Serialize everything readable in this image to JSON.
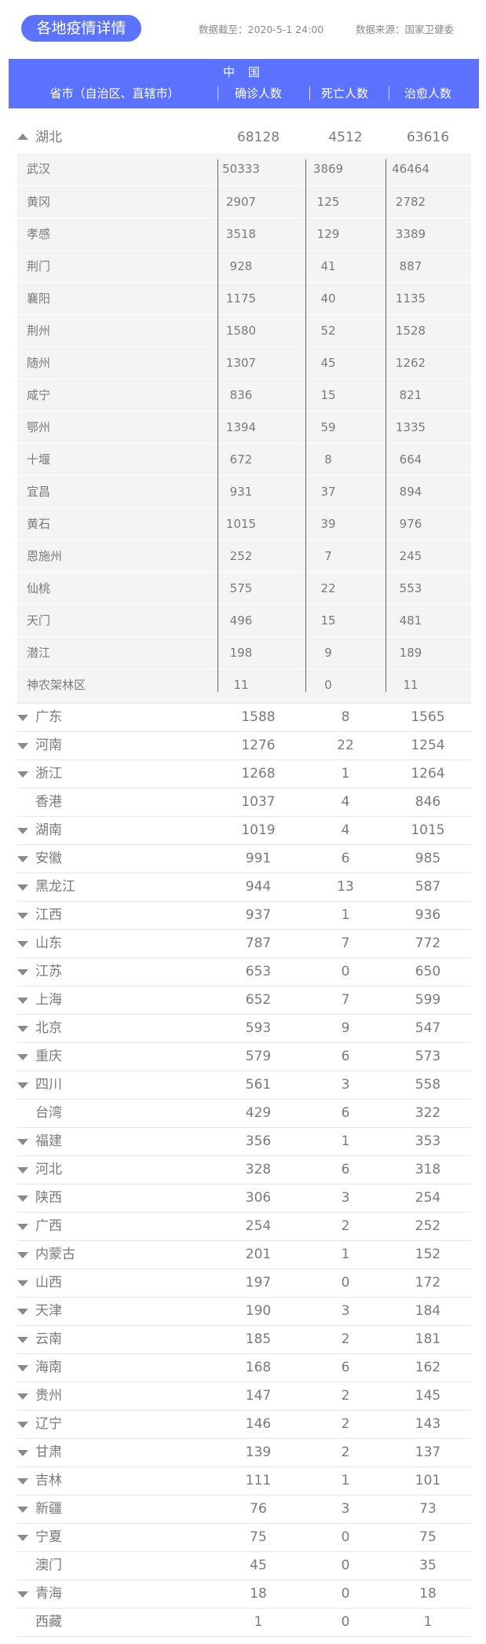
{
  "header": {
    "title": "各地疫情详情",
    "updated": "数据截至：2020-5-1 24:00",
    "source": "数据来源：国家卫健委"
  },
  "table_header": {
    "country": "中 国",
    "col_region": "省市（自治区、直辖市）",
    "col_confirmed": "确诊人数",
    "col_deaths": "死亡人数",
    "col_cured": "治愈人数"
  },
  "colors": {
    "accent": "#5b72fe",
    "sub_bg": "#f4f4f4",
    "text": "#7a7a7a"
  },
  "expanded": {
    "name": "湖北",
    "confirmed": "68128",
    "deaths": "4512",
    "cured": "63616",
    "icon": "triangle-up-icon",
    "cities": [
      {
        "name": "武汉",
        "confirmed": "50333",
        "deaths": "3869",
        "cured": "46464"
      },
      {
        "name": "黄冈",
        "confirmed": "2907",
        "deaths": "125",
        "cured": "2782"
      },
      {
        "name": "孝感",
        "confirmed": "3518",
        "deaths": "129",
        "cured": "3389"
      },
      {
        "name": "荆门",
        "confirmed": "928",
        "deaths": "41",
        "cured": "887"
      },
      {
        "name": "襄阳",
        "confirmed": "1175",
        "deaths": "40",
        "cured": "1135"
      },
      {
        "name": "荆州",
        "confirmed": "1580",
        "deaths": "52",
        "cured": "1528"
      },
      {
        "name": "随州",
        "confirmed": "1307",
        "deaths": "45",
        "cured": "1262"
      },
      {
        "name": "咸宁",
        "confirmed": "836",
        "deaths": "15",
        "cured": "821"
      },
      {
        "name": "鄂州",
        "confirmed": "1394",
        "deaths": "59",
        "cured": "1335"
      },
      {
        "name": "十堰",
        "confirmed": "672",
        "deaths": "8",
        "cured": "664"
      },
      {
        "name": "宜昌",
        "confirmed": "931",
        "deaths": "37",
        "cured": "894"
      },
      {
        "name": "黄石",
        "confirmed": "1015",
        "deaths": "39",
        "cured": "976"
      },
      {
        "name": "恩施州",
        "confirmed": "252",
        "deaths": "7",
        "cured": "245"
      },
      {
        "name": "仙桃",
        "confirmed": "575",
        "deaths": "22",
        "cured": "553"
      },
      {
        "name": "天门",
        "confirmed": "496",
        "deaths": "15",
        "cured": "481"
      },
      {
        "name": "潜江",
        "confirmed": "198",
        "deaths": "9",
        "cured": "189"
      },
      {
        "name": "神农架林区",
        "confirmed": "11",
        "deaths": "0",
        "cured": "11"
      }
    ]
  },
  "provinces": [
    {
      "name": "广东",
      "confirmed": "1588",
      "deaths": "8",
      "cured": "1565",
      "expandable": true
    },
    {
      "name": "河南",
      "confirmed": "1276",
      "deaths": "22",
      "cured": "1254",
      "expandable": true
    },
    {
      "name": "浙江",
      "confirmed": "1268",
      "deaths": "1",
      "cured": "1264",
      "expandable": true
    },
    {
      "name": "香港",
      "confirmed": "1037",
      "deaths": "4",
      "cured": "846",
      "expandable": false
    },
    {
      "name": "湖南",
      "confirmed": "1019",
      "deaths": "4",
      "cured": "1015",
      "expandable": true
    },
    {
      "name": "安徽",
      "confirmed": "991",
      "deaths": "6",
      "cured": "985",
      "expandable": true
    },
    {
      "name": "黑龙江",
      "confirmed": "944",
      "deaths": "13",
      "cured": "587",
      "expandable": true
    },
    {
      "name": "江西",
      "confirmed": "937",
      "deaths": "1",
      "cured": "936",
      "expandable": true
    },
    {
      "name": "山东",
      "confirmed": "787",
      "deaths": "7",
      "cured": "772",
      "expandable": true
    },
    {
      "name": "江苏",
      "confirmed": "653",
      "deaths": "0",
      "cured": "650",
      "expandable": true
    },
    {
      "name": "上海",
      "confirmed": "652",
      "deaths": "7",
      "cured": "599",
      "expandable": true
    },
    {
      "name": "北京",
      "confirmed": "593",
      "deaths": "9",
      "cured": "547",
      "expandable": true
    },
    {
      "name": "重庆",
      "confirmed": "579",
      "deaths": "6",
      "cured": "573",
      "expandable": true
    },
    {
      "name": "四川",
      "confirmed": "561",
      "deaths": "3",
      "cured": "558",
      "expandable": true
    },
    {
      "name": "台湾",
      "confirmed": "429",
      "deaths": "6",
      "cured": "322",
      "expandable": false
    },
    {
      "name": "福建",
      "confirmed": "356",
      "deaths": "1",
      "cured": "353",
      "expandable": true
    },
    {
      "name": "河北",
      "confirmed": "328",
      "deaths": "6",
      "cured": "318",
      "expandable": true
    },
    {
      "name": "陕西",
      "confirmed": "306",
      "deaths": "3",
      "cured": "254",
      "expandable": true
    },
    {
      "name": "广西",
      "confirmed": "254",
      "deaths": "2",
      "cured": "252",
      "expandable": true
    },
    {
      "name": "内蒙古",
      "confirmed": "201",
      "deaths": "1",
      "cured": "152",
      "expandable": true
    },
    {
      "name": "山西",
      "confirmed": "197",
      "deaths": "0",
      "cured": "172",
      "expandable": true
    },
    {
      "name": "天津",
      "confirmed": "190",
      "deaths": "3",
      "cured": "184",
      "expandable": true
    },
    {
      "name": "云南",
      "confirmed": "185",
      "deaths": "2",
      "cured": "181",
      "expandable": true
    },
    {
      "name": "海南",
      "confirmed": "168",
      "deaths": "6",
      "cured": "162",
      "expandable": true
    },
    {
      "name": "贵州",
      "confirmed": "147",
      "deaths": "2",
      "cured": "145",
      "expandable": true
    },
    {
      "name": "辽宁",
      "confirmed": "146",
      "deaths": "2",
      "cured": "143",
      "expandable": true
    },
    {
      "name": "甘肃",
      "confirmed": "139",
      "deaths": "2",
      "cured": "137",
      "expandable": true
    },
    {
      "name": "吉林",
      "confirmed": "111",
      "deaths": "1",
      "cured": "101",
      "expandable": true
    },
    {
      "name": "新疆",
      "confirmed": "76",
      "deaths": "3",
      "cured": "73",
      "expandable": true
    },
    {
      "name": "宁夏",
      "confirmed": "75",
      "deaths": "0",
      "cured": "75",
      "expandable": true
    },
    {
      "name": "澳门",
      "confirmed": "45",
      "deaths": "0",
      "cured": "35",
      "expandable": false
    },
    {
      "name": "青海",
      "confirmed": "18",
      "deaths": "0",
      "cured": "18",
      "expandable": true
    },
    {
      "name": "西藏",
      "confirmed": "1",
      "deaths": "0",
      "cured": "1",
      "expandable": false
    }
  ]
}
